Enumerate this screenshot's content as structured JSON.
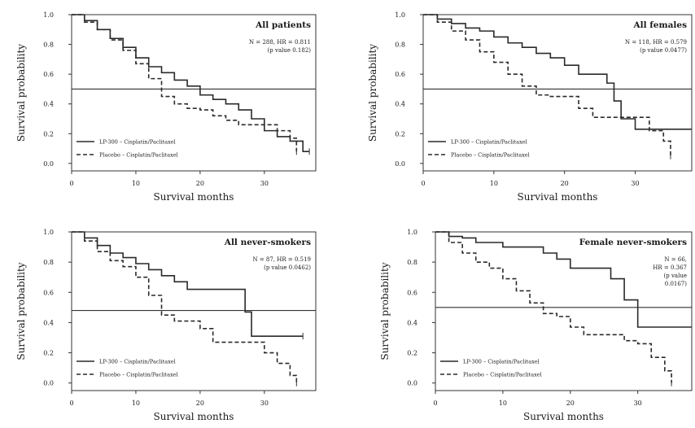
{
  "chart_data": [
    {
      "type": "line",
      "title": "All patients",
      "annotation": [
        "N = 288, HR = 0.811",
        "(p value 0.182)"
      ],
      "xlabel": "Survival months",
      "ylabel": "Survival probability",
      "xlim": [
        0,
        38
      ],
      "ylim": [
        -0.05,
        1.0
      ],
      "x_ticks": [
        0,
        10,
        20,
        30
      ],
      "y_ticks": [
        "0.0",
        "0.2",
        "0.4",
        "0.6",
        "0.8",
        "1.0"
      ],
      "median_line": 0.5,
      "series": [
        {
          "name": "LP-300 – Cisplatin/Paclitaxel",
          "style": "solid",
          "points": [
            [
              0,
              1.0
            ],
            [
              2,
              0.96
            ],
            [
              4,
              0.9
            ],
            [
              6,
              0.84
            ],
            [
              8,
              0.78
            ],
            [
              10,
              0.71
            ],
            [
              12,
              0.65
            ],
            [
              14,
              0.61
            ],
            [
              16,
              0.56
            ],
            [
              18,
              0.52
            ],
            [
              20,
              0.46
            ],
            [
              22,
              0.43
            ],
            [
              24,
              0.4
            ],
            [
              26,
              0.36
            ],
            [
              28,
              0.3
            ],
            [
              30,
              0.22
            ],
            [
              32,
              0.18
            ],
            [
              34,
              0.15
            ],
            [
              36,
              0.08
            ],
            [
              37,
              0.08
            ]
          ]
        },
        {
          "name": "Placebo – Cisplatin/Paclitaxel",
          "style": "dashed",
          "points": [
            [
              0,
              1.0
            ],
            [
              2,
              0.95
            ],
            [
              4,
              0.9
            ],
            [
              6,
              0.83
            ],
            [
              8,
              0.76
            ],
            [
              10,
              0.67
            ],
            [
              12,
              0.57
            ],
            [
              14,
              0.45
            ],
            [
              16,
              0.4
            ],
            [
              18,
              0.37
            ],
            [
              20,
              0.36
            ],
            [
              22,
              0.32
            ],
            [
              24,
              0.29
            ],
            [
              26,
              0.26
            ],
            [
              30,
              0.26
            ],
            [
              32,
              0.22
            ],
            [
              34,
              0.17
            ],
            [
              35,
              0.08
            ]
          ]
        }
      ]
    },
    {
      "type": "line",
      "title": "All females",
      "annotation": [
        "N = 118, HR = 0.579",
        "(p value 0.0477)"
      ],
      "xlabel": "Survival months",
      "ylabel": "Survival probability",
      "xlim": [
        0,
        38
      ],
      "ylim": [
        -0.05,
        1.0
      ],
      "x_ticks": [
        0,
        10,
        20,
        30
      ],
      "y_ticks": [
        "0.0",
        "0.2",
        "0.4",
        "0.6",
        "0.8",
        "1.0"
      ],
      "median_line": 0.5,
      "series": [
        {
          "name": "LP-300 – Cisplatin/Paclitaxel",
          "style": "solid",
          "points": [
            [
              0,
              1.0
            ],
            [
              2,
              0.97
            ],
            [
              4,
              0.94
            ],
            [
              6,
              0.91
            ],
            [
              8,
              0.89
            ],
            [
              10,
              0.85
            ],
            [
              12,
              0.81
            ],
            [
              14,
              0.78
            ],
            [
              16,
              0.74
            ],
            [
              18,
              0.71
            ],
            [
              20,
              0.66
            ],
            [
              22,
              0.6
            ],
            [
              24,
              0.6
            ],
            [
              26,
              0.54
            ],
            [
              27,
              0.42
            ],
            [
              28,
              0.3
            ],
            [
              30,
              0.23
            ],
            [
              34,
              0.23
            ],
            [
              36,
              0.23
            ],
            [
              38,
              0.23
            ]
          ]
        },
        {
          "name": "Placebo – Cisplatin/Paclitaxel",
          "style": "dashed",
          "points": [
            [
              0,
              1.0
            ],
            [
              2,
              0.95
            ],
            [
              4,
              0.89
            ],
            [
              6,
              0.83
            ],
            [
              8,
              0.75
            ],
            [
              10,
              0.68
            ],
            [
              12,
              0.6
            ],
            [
              14,
              0.52
            ],
            [
              16,
              0.46
            ],
            [
              18,
              0.45
            ],
            [
              20,
              0.45
            ],
            [
              22,
              0.37
            ],
            [
              24,
              0.31
            ],
            [
              26,
              0.31
            ],
            [
              30,
              0.31
            ],
            [
              32,
              0.22
            ],
            [
              34,
              0.15
            ],
            [
              35,
              0.05
            ]
          ]
        }
      ]
    },
    {
      "type": "line",
      "title": "All never-smokers",
      "annotation": [
        "N = 87, HR = 0.519",
        "(p value 0.0462)"
      ],
      "xlabel": "Survival months",
      "ylabel": "Survival probability",
      "xlim": [
        0,
        38
      ],
      "ylim": [
        -0.05,
        1.0
      ],
      "x_ticks": [
        0,
        10,
        20,
        30
      ],
      "y_ticks": [
        "0.0",
        "0.2",
        "0.4",
        "0.6",
        "0.8",
        "1.0"
      ],
      "median_line": 0.48,
      "series": [
        {
          "name": "LP-300 – Cisplatin/Paclitaxel",
          "style": "solid",
          "points": [
            [
              0,
              1.0
            ],
            [
              2,
              0.96
            ],
            [
              4,
              0.91
            ],
            [
              6,
              0.86
            ],
            [
              8,
              0.83
            ],
            [
              10,
              0.79
            ],
            [
              12,
              0.75
            ],
            [
              14,
              0.71
            ],
            [
              16,
              0.67
            ],
            [
              18,
              0.62
            ],
            [
              20,
              0.62
            ],
            [
              22,
              0.62
            ],
            [
              26,
              0.62
            ],
            [
              27,
              0.47
            ],
            [
              28,
              0.31
            ],
            [
              30,
              0.31
            ],
            [
              34,
              0.31
            ],
            [
              36,
              0.31
            ]
          ]
        },
        {
          "name": "Placebo – Cisplatin/Paclitaxel",
          "style": "dashed",
          "points": [
            [
              0,
              1.0
            ],
            [
              2,
              0.94
            ],
            [
              4,
              0.87
            ],
            [
              6,
              0.81
            ],
            [
              8,
              0.77
            ],
            [
              10,
              0.7
            ],
            [
              12,
              0.58
            ],
            [
              14,
              0.45
            ],
            [
              16,
              0.41
            ],
            [
              18,
              0.41
            ],
            [
              20,
              0.36
            ],
            [
              22,
              0.27
            ],
            [
              24,
              0.27
            ],
            [
              26,
              0.27
            ],
            [
              28,
              0.27
            ],
            [
              30,
              0.2
            ],
            [
              32,
              0.13
            ],
            [
              34,
              0.05
            ],
            [
              35,
              0.0
            ]
          ]
        }
      ]
    },
    {
      "type": "line",
      "title": "Female never-smokers",
      "annotation": [
        "N = 66,",
        "HR = 0.367",
        "(p value",
        "0.0167)"
      ],
      "xlabel": "Survival months",
      "ylabel": "Survival probability",
      "xlim": [
        0,
        38
      ],
      "ylim": [
        -0.05,
        1.0
      ],
      "x_ticks": [
        0,
        10,
        20,
        30
      ],
      "y_ticks": [
        "0.0",
        "0.2",
        "0.4",
        "0.6",
        "0.8",
        "1.0"
      ],
      "median_line": 0.5,
      "series": [
        {
          "name": "LP-300 – Cisplatin/Paclitaxel",
          "style": "solid",
          "points": [
            [
              0,
              1.0
            ],
            [
              2,
              0.97
            ],
            [
              4,
              0.96
            ],
            [
              6,
              0.93
            ],
            [
              8,
              0.93
            ],
            [
              10,
              0.9
            ],
            [
              14,
              0.9
            ],
            [
              16,
              0.86
            ],
            [
              18,
              0.82
            ],
            [
              20,
              0.76
            ],
            [
              24,
              0.76
            ],
            [
              26,
              0.69
            ],
            [
              28,
              0.55
            ],
            [
              30,
              0.37
            ],
            [
              34,
              0.37
            ],
            [
              38,
              0.37
            ]
          ]
        },
        {
          "name": "Placebo – Cisplatin/Paclitaxel",
          "style": "dashed",
          "points": [
            [
              0,
              1.0
            ],
            [
              2,
              0.93
            ],
            [
              4,
              0.86
            ],
            [
              6,
              0.8
            ],
            [
              8,
              0.76
            ],
            [
              10,
              0.69
            ],
            [
              12,
              0.61
            ],
            [
              14,
              0.53
            ],
            [
              16,
              0.46
            ],
            [
              18,
              0.44
            ],
            [
              20,
              0.37
            ],
            [
              22,
              0.32
            ],
            [
              24,
              0.32
            ],
            [
              26,
              0.32
            ],
            [
              28,
              0.28
            ],
            [
              30,
              0.26
            ],
            [
              32,
              0.17
            ],
            [
              34,
              0.08
            ],
            [
              35,
              0.0
            ]
          ]
        }
      ]
    }
  ]
}
